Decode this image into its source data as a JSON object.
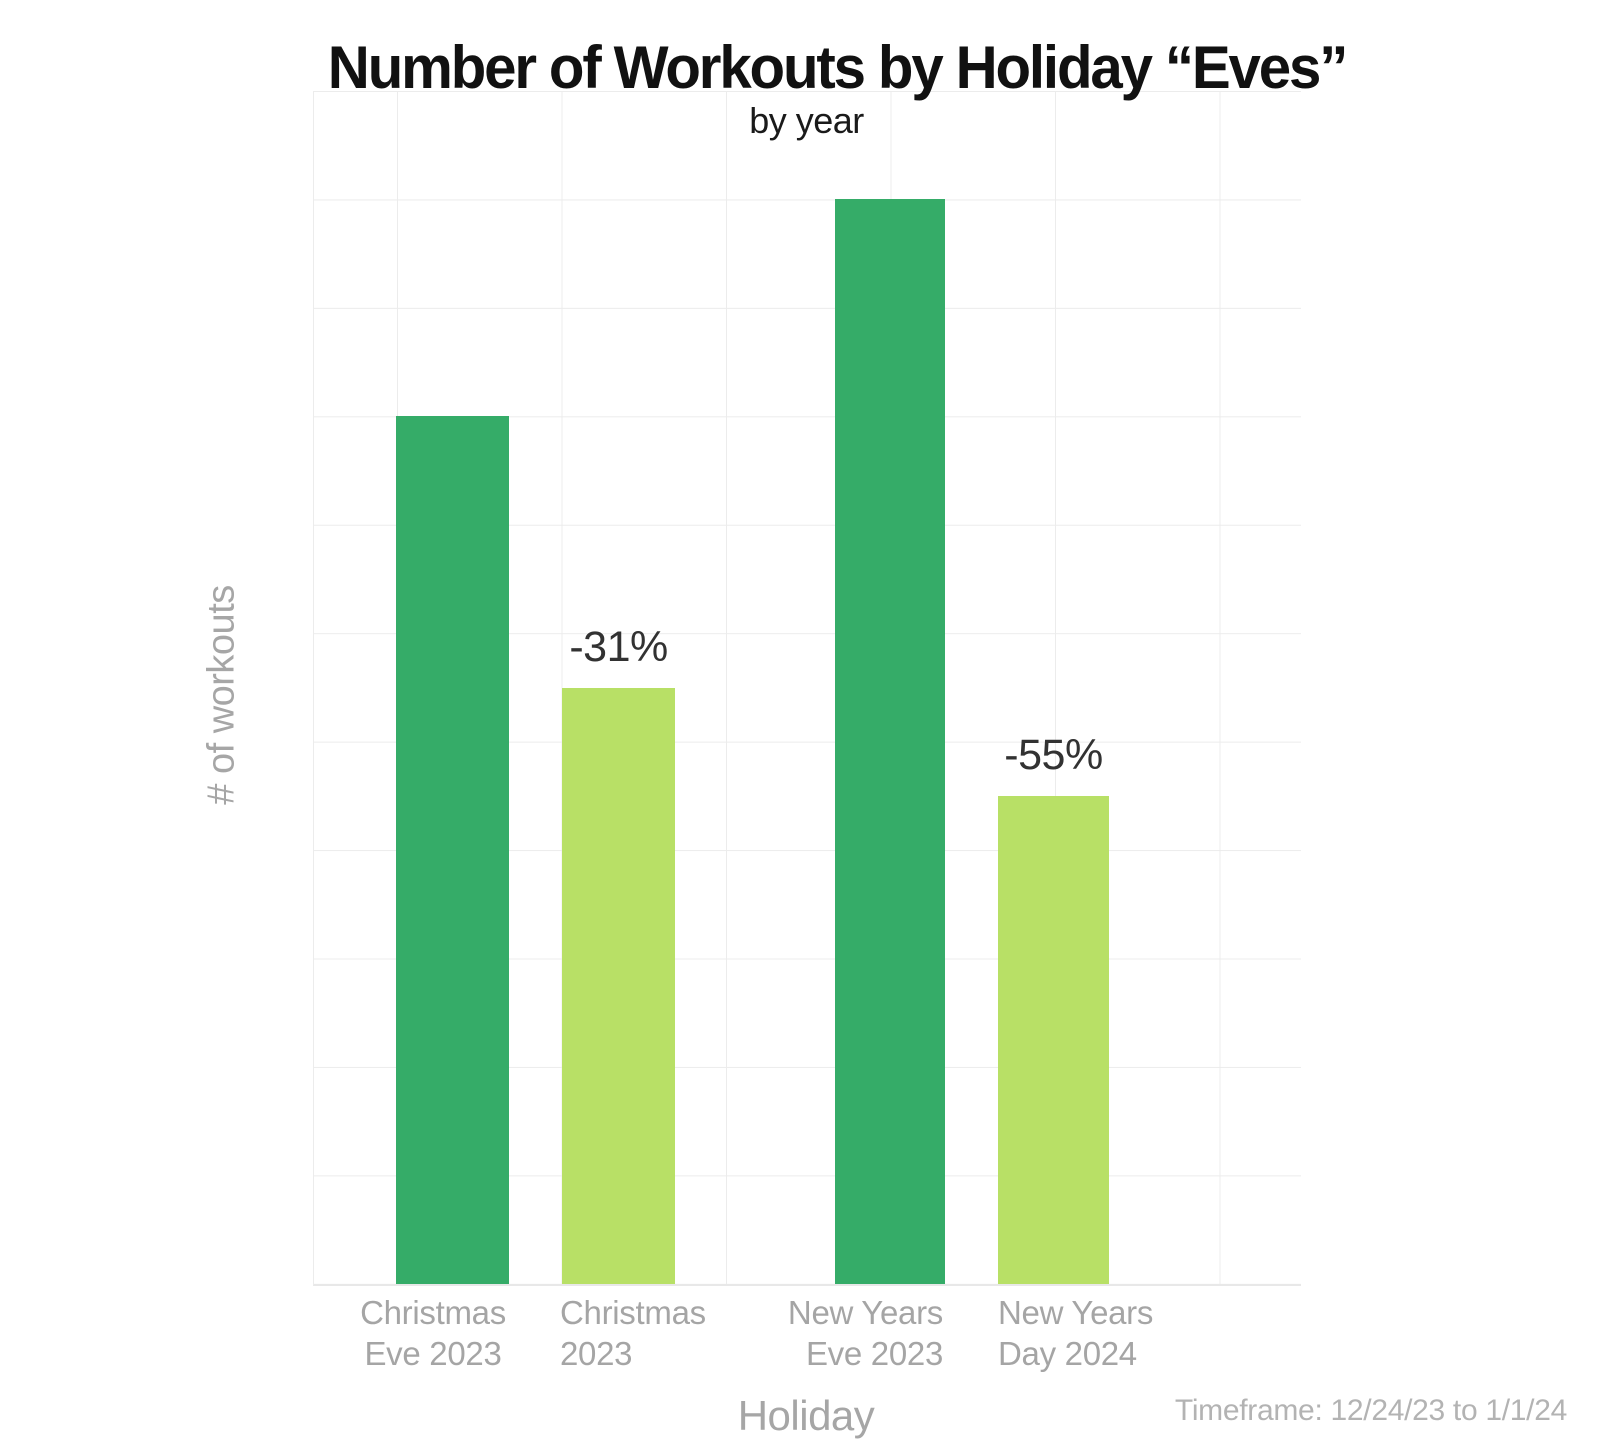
{
  "title": "Number of Workouts by Holiday “Eves”",
  "subtitle": "by year",
  "footnote": "Timeframe: 12/24/23 to 1/1/24",
  "chart_data": {
    "type": "bar",
    "title": "Number of Workouts by Holiday “Eves”",
    "subtitle": "by year",
    "xlabel": "Holiday",
    "ylabel": "# of workouts",
    "ylim": [
      0,
      11
    ],
    "y_ticks_labeled": false,
    "grid": true,
    "legend": false,
    "value_note": "y-axis has no numeric tick labels; values estimated in horizontal-gridline units (plot top = 11 units)",
    "categories": [
      "Christmas Eve 2023",
      "Christmas 2023",
      "New Years Eve 2023",
      "New Years Day 2024"
    ],
    "bars": [
      {
        "category": "Christmas Eve 2023",
        "lines": [
          "Christmas",
          "Eve 2023"
        ],
        "value": 8,
        "color": "#35ac68",
        "label": ""
      },
      {
        "category": "Christmas 2023",
        "lines": [
          "Christmas",
          "2023"
        ],
        "value": 5.5,
        "color": "#b8e066",
        "label": "-31%"
      },
      {
        "category": "New Years Eve 2023",
        "lines": [
          "New Years",
          "Eve 2023"
        ],
        "value": 10,
        "color": "#35ac68",
        "label": ""
      },
      {
        "category": "New Years Day 2024",
        "lines": [
          "New Years",
          "Day 2024"
        ],
        "value": 4.5,
        "color": "#b8e066",
        "label": "-55%"
      }
    ],
    "colors": {
      "eve_bars_dark_green": "#35ac68",
      "day_bars_light_green": "#b8e066",
      "gridline": "#ececec"
    }
  }
}
